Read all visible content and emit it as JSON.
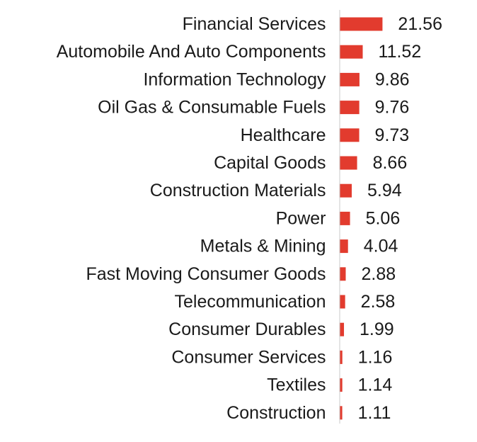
{
  "chart_data": {
    "type": "bar",
    "orientation": "horizontal",
    "title": "",
    "xlabel": "",
    "ylabel": "",
    "categories": [
      "Financial Services",
      "Automobile And Auto Components",
      "Information Technology",
      "Oil Gas & Consumable Fuels",
      "Healthcare",
      "Capital Goods",
      "Construction Materials",
      "Power",
      "Metals & Mining",
      "Fast Moving Consumer Goods",
      "Telecommunication",
      "Consumer Durables",
      "Consumer Services",
      "Textiles",
      "Construction"
    ],
    "values": [
      21.56,
      11.52,
      9.86,
      9.76,
      9.73,
      8.66,
      5.94,
      5.06,
      4.04,
      2.88,
      2.58,
      1.99,
      1.16,
      1.14,
      1.11
    ],
    "value_labels": [
      "21.56",
      "11.52",
      "9.86",
      "9.76",
      "9.73",
      "8.66",
      "5.94",
      "5.06",
      "4.04",
      "2.88",
      "2.58",
      "1.99",
      "1.16",
      "1.14",
      "1.11"
    ],
    "xlim": [
      0,
      22
    ],
    "bar_color": "#e23b2e",
    "grid": false
  }
}
